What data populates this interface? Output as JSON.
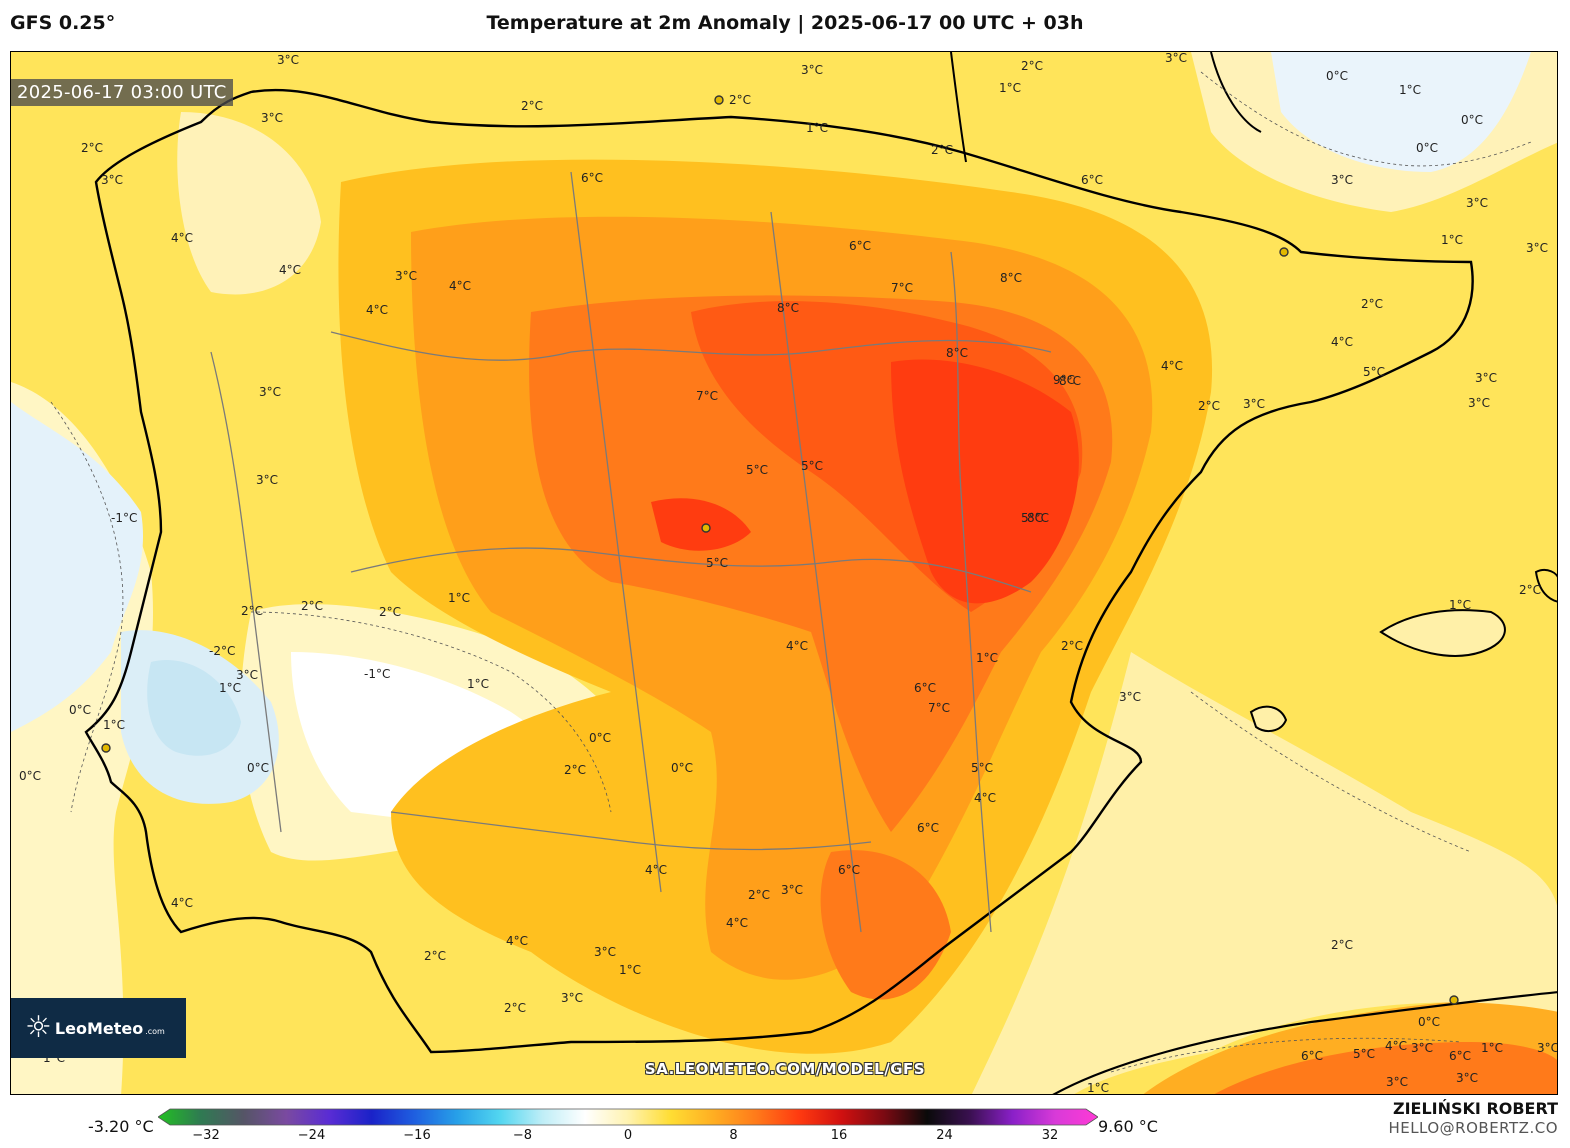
{
  "header": {
    "model": "GFS 0.25°",
    "title": "Temperature at 2m Anomaly | 2025-06-17 00 UTC + 03h"
  },
  "map": {
    "timestamp": "2025-06-17 03:00 UTC",
    "url": "SA.LEOMETEO.COM/MODEL/GFS",
    "logo": {
      "name": "LeoMeteo",
      "domain": ".com"
    },
    "contour_labels": [
      "3°C",
      "3°C",
      "2°C",
      "3°C",
      "2°C",
      "0°C",
      "1°C",
      "0°C",
      "2°C",
      "1°C",
      "0°C",
      "2°C",
      "3°C",
      "3°C",
      "4°C",
      "4°C",
      "6°C",
      "6°C",
      "2°C",
      "1°C",
      "3°C",
      "1°C",
      "3°C",
      "4°C",
      "3°C",
      "4°C",
      "8°C",
      "8°C",
      "6°C",
      "7°C",
      "8°C",
      "3°C",
      "2°C",
      "3°C",
      "3°C",
      "2°C",
      "4°C",
      "7°C",
      "8°C",
      "9°C",
      "5°C",
      "4°C",
      "5°C",
      "3°C",
      "3°C",
      "2°C",
      "3°C",
      "-1°C",
      "5°C",
      "5°C",
      "8°C",
      "1°C",
      "1°C",
      "2°C",
      "5°C",
      "1°C",
      "2°C",
      "-2°C",
      "-1°C",
      "1°C",
      "4°C",
      "1°C",
      "3°C",
      "2°C",
      "2°C",
      "3°C",
      "0°C",
      "1°C",
      "0°C",
      "2°C",
      "0°C",
      "0°C",
      "6°C",
      "7°C",
      "0°C",
      "5°C",
      "4°C",
      "2°C",
      "6°C",
      "1°C",
      "4°C",
      "6°C",
      "2°C",
      "3°C",
      "4°C",
      "4°C",
      "2°C",
      "2°C",
      "3°C",
      "1°C",
      "4°C",
      "3°C",
      "1°C",
      "0°C",
      "1°C",
      "6°C",
      "5°C",
      "4°C",
      "6°C",
      "3°C",
      "3°C",
      "3°C",
      "3°C"
    ]
  },
  "colorbar": {
    "min_label": "-3.20 °C",
    "max_label": "9.60 °C",
    "ticks": [
      "−32",
      "−24",
      "−16",
      "−8",
      "0",
      "8",
      "16",
      "24",
      "32"
    ],
    "colors": [
      "#22c022",
      "#2f7a52",
      "#555566",
      "#7a4aa0",
      "#5a2cd4",
      "#1a22c8",
      "#1f5fe0",
      "#27a0e8",
      "#52d6f0",
      "#bfeef7",
      "#ffffff",
      "#fff3b0",
      "#ffdd33",
      "#ffae22",
      "#ff7a1a",
      "#ff3a10",
      "#d01010",
      "#7a0a12",
      "#0a0a0a",
      "#3a1050",
      "#8a20c8",
      "#d83ad8",
      "#ff3ad6"
    ]
  },
  "footer": {
    "author": "ZIELIŃSKI ROBERT",
    "email": "HELLO@ROBERTZ.CO"
  }
}
